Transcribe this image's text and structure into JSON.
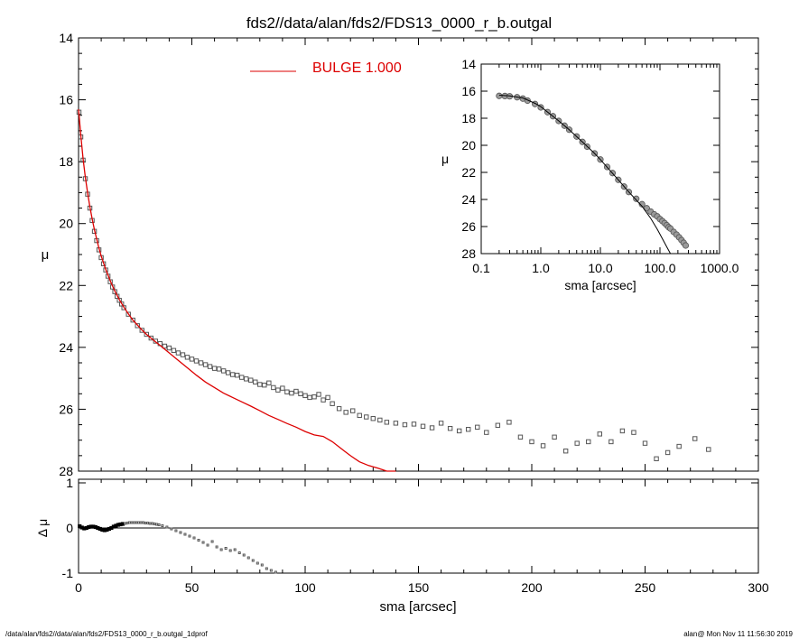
{
  "title": "fds2//data/alan/fds2/FDS13_0000_r_b.outgal",
  "footer": {
    "left": "/data/alan/fds2//data/alan/fds2/FDS13_0000_r_b.outgal_1dprof",
    "right": "alan@  Mon Nov 11 11:56:30 2019"
  },
  "colors": {
    "model": "#dd0000",
    "points": "#555555",
    "axis": "#000000"
  },
  "chart_data": [
    {
      "id": "main-profile",
      "type": "scatter",
      "ylabel": "μ",
      "xlim": [
        0,
        300
      ],
      "ylim": [
        28,
        14
      ],
      "y_inverted": true,
      "yticks": [
        14,
        16,
        18,
        20,
        22,
        24,
        26,
        28
      ],
      "legend": {
        "placement": "top-center",
        "entries": [
          {
            "label": "BULGE  1.000",
            "color": "#dd0000"
          }
        ]
      },
      "series": [
        {
          "name": "",
          "kind": "points",
          "x": [
            0.2,
            1,
            2,
            3,
            4,
            5,
            6,
            7,
            8,
            9,
            10,
            11,
            12,
            13,
            14,
            15,
            16,
            17,
            18,
            19,
            20,
            22,
            24,
            26,
            28,
            30,
            32,
            34,
            36,
            38,
            40,
            42,
            44,
            46,
            48,
            50,
            52,
            54,
            56,
            58,
            60,
            62,
            64,
            66,
            68,
            70,
            72,
            74,
            76,
            78,
            80,
            82,
            84,
            86,
            88,
            90,
            92,
            94,
            96,
            98,
            100,
            102,
            104,
            106,
            108,
            110,
            112,
            115,
            118,
            121,
            124,
            127,
            130,
            133,
            136,
            140,
            144,
            148,
            152,
            156,
            160,
            164,
            168,
            172,
            176,
            180,
            185,
            190,
            195,
            200,
            205,
            210,
            215,
            220,
            225,
            230,
            235,
            240,
            245,
            250,
            255,
            260,
            265,
            272,
            278
          ],
          "y": [
            16.4,
            17.2,
            17.95,
            18.55,
            19.05,
            19.5,
            19.9,
            20.25,
            20.55,
            20.85,
            21.1,
            21.3,
            21.5,
            21.7,
            21.88,
            22.05,
            22.2,
            22.35,
            22.48,
            22.6,
            22.72,
            22.93,
            23.12,
            23.3,
            23.45,
            23.58,
            23.7,
            23.8,
            23.88,
            23.96,
            24.02,
            24.1,
            24.18,
            24.24,
            24.32,
            24.38,
            24.44,
            24.5,
            24.56,
            24.62,
            24.68,
            24.7,
            24.76,
            24.82,
            24.88,
            24.9,
            24.97,
            25.02,
            25.06,
            25.12,
            25.2,
            25.22,
            25.15,
            25.3,
            25.38,
            25.32,
            25.44,
            25.48,
            25.42,
            25.5,
            25.56,
            25.62,
            25.6,
            25.52,
            25.7,
            25.62,
            25.82,
            25.98,
            26.1,
            26.05,
            26.2,
            26.25,
            26.3,
            26.35,
            26.42,
            26.45,
            26.5,
            26.48,
            26.55,
            26.6,
            26.45,
            26.62,
            26.7,
            26.65,
            26.58,
            26.75,
            26.52,
            26.42,
            26.9,
            27.05,
            27.18,
            26.9,
            27.35,
            27.1,
            27.05,
            26.8,
            27.05,
            26.7,
            26.75,
            27.1,
            27.6,
            27.4,
            27.2,
            26.95,
            27.3
          ]
        },
        {
          "name": "BULGE  1.000",
          "kind": "line",
          "x": [
            0,
            1,
            2,
            3,
            4,
            5,
            6,
            7,
            8,
            9,
            10,
            12,
            14,
            16,
            18,
            20,
            22,
            24,
            26,
            28,
            30,
            32,
            34,
            36,
            38,
            40,
            44,
            48,
            52,
            56,
            60,
            64,
            68,
            72,
            76,
            80,
            84,
            88,
            92,
            96,
            100,
            104,
            108,
            112,
            116,
            120,
            124,
            128,
            132,
            136,
            140
          ],
          "y": [
            16.3,
            17.15,
            17.9,
            18.5,
            19.0,
            19.45,
            19.85,
            20.2,
            20.5,
            20.8,
            21.05,
            21.48,
            21.85,
            22.18,
            22.46,
            22.7,
            22.92,
            23.12,
            23.28,
            23.44,
            23.58,
            23.7,
            23.82,
            23.94,
            24.06,
            24.18,
            24.42,
            24.66,
            24.9,
            25.12,
            25.3,
            25.48,
            25.62,
            25.76,
            25.9,
            26.05,
            26.2,
            26.33,
            26.46,
            26.58,
            26.72,
            26.83,
            26.88,
            27.05,
            27.28,
            27.5,
            27.7,
            27.82,
            27.9,
            28.0,
            28.05
          ]
        }
      ]
    },
    {
      "id": "residuals",
      "type": "scatter",
      "xlabel": "sma [arcsec]",
      "ylabel": "Δ μ",
      "xlim": [
        0,
        300
      ],
      "ylim": [
        -1,
        1
      ],
      "yticks": [
        1,
        0,
        -1
      ],
      "xticks": [
        0,
        50,
        100,
        150,
        200,
        250,
        300
      ],
      "reference_line": 0,
      "series": [
        {
          "name": "",
          "kind": "points",
          "x": [
            0.5,
            1.5,
            2.5,
            3.5,
            4.5,
            5.5,
            6.5,
            7.5,
            8.5,
            9.5,
            10.5,
            11.5,
            12.5,
            13.5,
            14.5,
            15.5,
            16.5,
            17.5,
            18.5,
            19.5,
            20.5,
            21.5,
            22.5,
            23.5,
            24.5,
            25.5,
            26.5,
            27.5,
            28.5,
            29.5,
            30.5,
            31.5,
            32.5,
            33.5,
            34.5,
            35.5,
            37,
            39,
            41,
            43,
            45,
            47,
            49,
            51,
            53,
            55,
            57,
            59,
            61,
            63,
            65,
            67,
            69,
            71,
            73,
            75,
            77,
            79,
            81,
            83,
            85,
            87,
            89,
            91,
            93
          ],
          "y": [
            0.04,
            0.01,
            -0.01,
            0.0,
            0.02,
            0.03,
            0.03,
            0.02,
            0.0,
            -0.02,
            -0.04,
            -0.05,
            -0.04,
            -0.02,
            0.0,
            0.03,
            0.05,
            0.07,
            0.08,
            0.09,
            0.1,
            0.11,
            0.12,
            0.12,
            0.12,
            0.12,
            0.12,
            0.12,
            0.12,
            0.11,
            0.11,
            0.1,
            0.1,
            0.09,
            0.08,
            0.07,
            0.05,
            0.02,
            -0.02,
            -0.06,
            -0.1,
            -0.14,
            -0.18,
            -0.22,
            -0.27,
            -0.32,
            -0.38,
            -0.3,
            -0.42,
            -0.48,
            -0.45,
            -0.5,
            -0.48,
            -0.55,
            -0.6,
            -0.66,
            -0.72,
            -0.78,
            -0.82,
            -0.9,
            -0.94,
            -0.98,
            -1.02,
            -1.06,
            -1.1
          ]
        }
      ]
    },
    {
      "id": "inset-log",
      "type": "scatter",
      "xlabel": "sma [arcsec]",
      "ylabel": "μ",
      "xscale": "log",
      "xlim": [
        0.1,
        1000
      ],
      "ylim": [
        28,
        14
      ],
      "y_inverted": true,
      "xticks": [
        0.1,
        1,
        10,
        100,
        1000
      ],
      "xtick_labels": [
        "0.1",
        "1.0",
        "10.0",
        "100.0",
        "1000.0"
      ],
      "yticks": [
        14,
        16,
        18,
        20,
        22,
        24,
        26,
        28
      ],
      "series": [
        {
          "name": "",
          "kind": "points",
          "x": [
            0.2,
            0.25,
            0.3,
            0.4,
            0.5,
            0.6,
            0.8,
            1,
            1.3,
            1.6,
            2,
            2.5,
            3,
            4,
            5,
            6,
            8,
            10,
            13,
            16,
            20,
            25,
            30,
            40,
            50,
            60,
            70,
            80,
            90,
            100,
            110,
            120,
            130,
            140,
            150,
            170,
            190,
            210,
            230,
            250,
            270
          ],
          "y": [
            16.35,
            16.36,
            16.38,
            16.45,
            16.55,
            16.7,
            16.95,
            17.2,
            17.55,
            17.85,
            18.2,
            18.55,
            18.85,
            19.35,
            19.75,
            20.1,
            20.6,
            21.05,
            21.6,
            22.05,
            22.55,
            23.05,
            23.45,
            23.95,
            24.35,
            24.65,
            24.9,
            25.1,
            25.25,
            25.45,
            25.6,
            25.75,
            25.9,
            26.05,
            26.15,
            26.4,
            26.6,
            26.8,
            27.0,
            27.2,
            27.4
          ]
        },
        {
          "name": "BULGE  1.000",
          "kind": "line",
          "x": [
            0.2,
            0.3,
            0.5,
            0.8,
            1,
            2,
            3,
            5,
            8,
            10,
            20,
            30,
            50,
            70,
            90,
            110,
            130,
            150
          ],
          "y": [
            16.3,
            16.35,
            16.5,
            16.9,
            17.15,
            18.2,
            18.85,
            19.75,
            20.6,
            21.05,
            22.55,
            23.45,
            24.5,
            25.4,
            26.2,
            26.9,
            27.5,
            28.0
          ]
        }
      ]
    }
  ]
}
